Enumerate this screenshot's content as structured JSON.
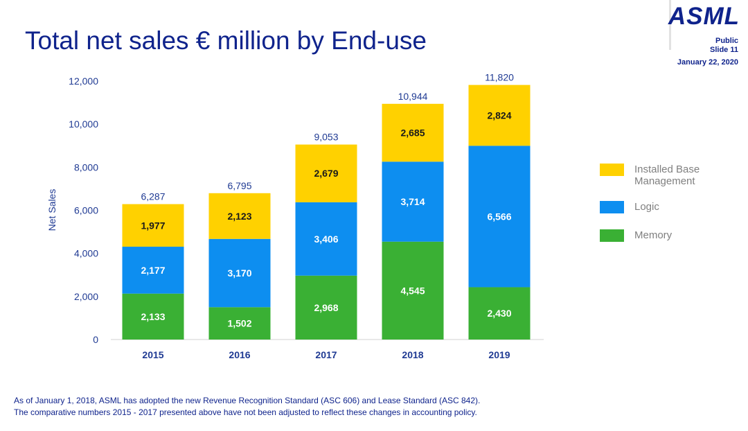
{
  "page": {
    "title": "Total net sales € million by End-use",
    "logo": "ASML",
    "classification": "Public",
    "slide": "Slide 11",
    "date": "January 22, 2020",
    "footnote_lines": [
      "As of January 1, 2018, ASML has adopted the new Revenue Recognition Standard (ASC 606) and Lease Standard (ASC 842).",
      "The comparative numbers 2015 - 2017 presented above have not been adjusted to reflect these changes in accounting policy."
    ]
  },
  "colors": {
    "title": "#0f238c",
    "axis_text": "#1f3a93",
    "installed_base": "#ffd100",
    "logic": "#0d8ef0",
    "memory": "#3ab034",
    "legend_text": "#7f7f7f"
  },
  "chart_data": {
    "type": "bar",
    "stacked": true,
    "categories": [
      "2015",
      "2016",
      "2017",
      "2018",
      "2019"
    ],
    "series": [
      {
        "name": "Memory",
        "color": "#3ab034",
        "values": [
          2133,
          1502,
          2968,
          4545,
          2430
        ],
        "labels": [
          "2,133",
          "1,502",
          "2,968",
          "4,545",
          "2,430"
        ]
      },
      {
        "name": "Logic",
        "color": "#0d8ef0",
        "values": [
          2177,
          3170,
          3406,
          3714,
          6566
        ],
        "labels": [
          "2,177",
          "3,170",
          "3,406",
          "3,714",
          "6,566"
        ]
      },
      {
        "name": "Installed Base Management",
        "color": "#ffd100",
        "values": [
          1977,
          2123,
          2679,
          2685,
          2824
        ],
        "labels": [
          "1,977",
          "2,123",
          "2,679",
          "2,685",
          "2,824"
        ]
      }
    ],
    "totals": [
      6287,
      6795,
      9053,
      10944,
      11820
    ],
    "total_labels": [
      "6,287",
      "6,795",
      "9,053",
      "10,944",
      "11,820"
    ],
    "ylabel": "Net Sales",
    "ylim": [
      0,
      12000
    ],
    "yticks": [
      0,
      2000,
      4000,
      6000,
      8000,
      10000,
      12000
    ],
    "ytick_labels": [
      "0",
      "2,000",
      "4,000",
      "6,000",
      "8,000",
      "10,000",
      "12,000"
    ],
    "grid": false,
    "legend_position": "right",
    "legend": [
      {
        "label": "Installed Base Management",
        "color": "#ffd100"
      },
      {
        "label": "Logic",
        "color": "#0d8ef0"
      },
      {
        "label": "Memory",
        "color": "#3ab034"
      }
    ]
  }
}
